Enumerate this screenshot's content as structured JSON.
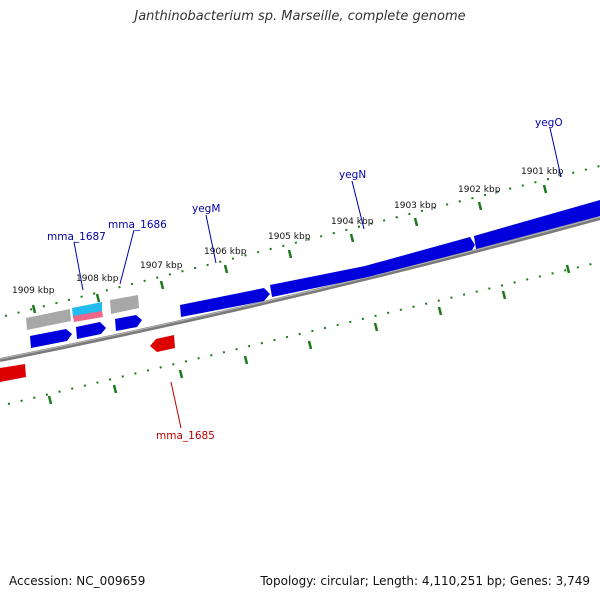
{
  "title": "Janthinobacterium sp. Marseille, complete genome",
  "footer": {
    "accession": "Accession: NC_009659",
    "summary": "Topology: circular; Length: 4,110,251 bp; Genes: 3,749"
  },
  "colors": {
    "tick": "#1a7a1a",
    "backbone": "#7a7a7a",
    "gene_blue": "#0000dd",
    "gene_red": "#dd0000",
    "gene_gray": "#a8a8a8",
    "gene_cyan": "#22bbee",
    "gene_pink": "#ee6688",
    "label_blue": "#0000aa",
    "label_red": "#bb0000"
  },
  "ruler_labels": [
    "1901 kbp",
    "1902 kbp",
    "1903 kbp",
    "1904 kbp",
    "1905 kbp",
    "1906 kbp",
    "1907 kbp",
    "1908 kbp",
    "1909 kbp"
  ],
  "gene_labels": [
    {
      "name": "yegO",
      "color": "label_blue"
    },
    {
      "name": "yegN",
      "color": "label_blue"
    },
    {
      "name": "yegM",
      "color": "label_blue"
    },
    {
      "name": "mma_1686",
      "color": "label_blue"
    },
    {
      "name": "mma_1687",
      "color": "label_blue"
    },
    {
      "name": "mma_1685",
      "color": "label_red"
    }
  ]
}
